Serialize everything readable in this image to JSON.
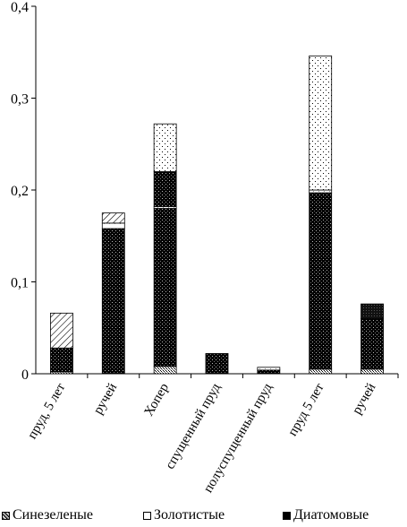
{
  "chart_data": {
    "type": "bar",
    "stacked": true,
    "categories": [
      "пруд, 5 лет",
      "ручей",
      "Хопер",
      "спущенный пруд",
      "полуспущенный пруд",
      "пруд 5 лет",
      "ручей"
    ],
    "series": [
      {
        "name": "Синезеленые",
        "values": [
          0.002,
          0.0,
          0.008,
          0.0,
          0.0,
          0.005,
          0.005
        ]
      },
      {
        "name": "Диатомовые",
        "values": [
          0.026,
          0.158,
          0.172,
          0.022,
          0.004,
          0.192,
          0.055
        ]
      },
      {
        "name": "",
        "values": [
          0.0,
          0.006,
          0.002,
          0.0,
          0.003,
          0.003,
          0.0
        ]
      },
      {
        "name": "",
        "values": [
          0.0,
          0.0,
          0.0,
          0.0,
          0.0,
          0.0,
          0.016
        ]
      },
      {
        "name": "",
        "values": [
          0.0,
          0.0,
          0.038,
          0.0,
          0.0,
          0.0,
          0.0
        ]
      },
      {
        "name": "",
        "values": [
          0.038,
          0.0,
          0.0,
          0.0,
          0.0,
          0.0,
          0.0
        ]
      },
      {
        "name": "Золотистые",
        "values": [
          0.0,
          0.0,
          0.052,
          0.0,
          0.0,
          0.146,
          0.0
        ]
      },
      {
        "name": "",
        "values": [
          0.0,
          0.011,
          0.0,
          0.0,
          0.0,
          0.0,
          0.0
        ]
      }
    ],
    "ylim": [
      0,
      0.4
    ],
    "yticks": [
      "0",
      "0,1",
      "0,2",
      "0,3",
      "0,4"
    ],
    "ytick_values": [
      0,
      0.1,
      0.2,
      0.3,
      0.4
    ],
    "xlabel": "",
    "ylabel": "",
    "legend_position": "bottom",
    "grid": false
  },
  "legend": {
    "items": [
      "Синезеленые",
      "Золотистые",
      "Диатомовые"
    ]
  },
  "colors": {
    "axis": "#000000",
    "bar_outline": "#000000"
  }
}
